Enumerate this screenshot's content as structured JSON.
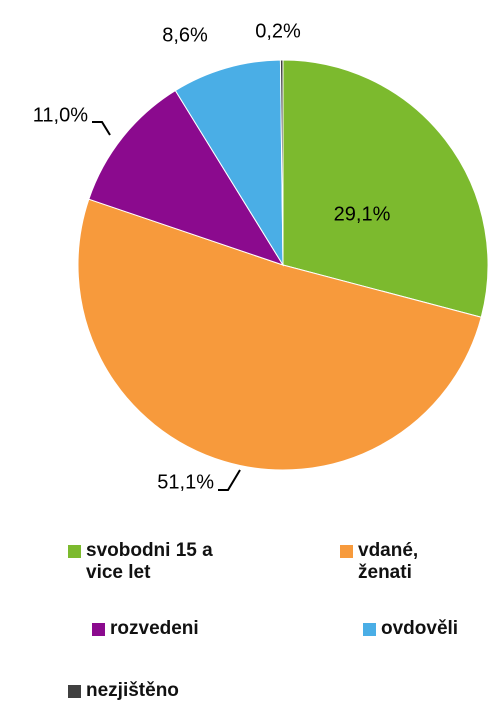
{
  "chart_data": {
    "type": "pie",
    "categories": [
      "svobodni 15 a vice let",
      "vdané, ženati",
      "rozvedeni",
      "ovdověli",
      "nezjištěno"
    ],
    "values": [
      29.1,
      51.1,
      11.0,
      8.6,
      0.2
    ],
    "value_labels": [
      "29,1%",
      "51,1%",
      "11,0%",
      "8,6%",
      "0,2%"
    ],
    "colors": [
      "#7cba2e",
      "#f79a3c",
      "#8b0a8e",
      "#4aaee6",
      "#404040"
    ]
  }
}
